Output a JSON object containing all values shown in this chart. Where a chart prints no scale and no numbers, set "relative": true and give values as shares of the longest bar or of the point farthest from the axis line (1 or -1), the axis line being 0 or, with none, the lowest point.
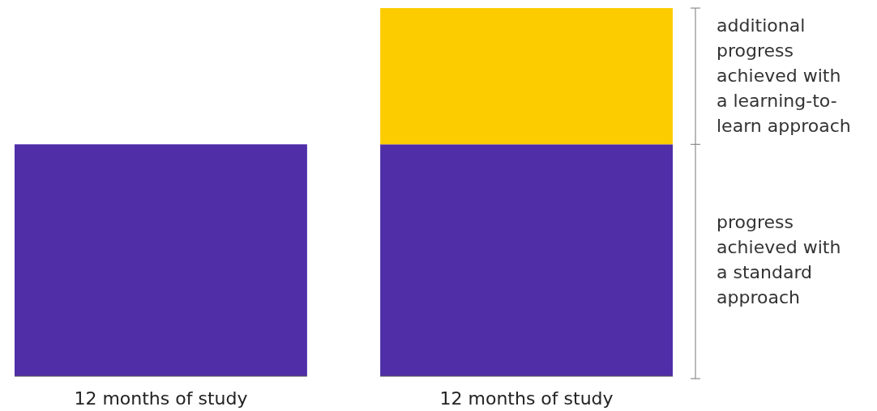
{
  "chart_data": {
    "type": "bar",
    "stacked": true,
    "relative": true,
    "legend": false,
    "categories": [
      "12 months of study",
      "12 months of study"
    ],
    "series": [
      {
        "name": "progress achieved with a standard approach",
        "color": "#4f2ea8",
        "values": [
          0.63,
          0.63
        ]
      },
      {
        "name": "additional progress achieved with a learning-to-learn approach",
        "color": "#fccc00",
        "values": [
          null,
          0.37
        ]
      }
    ]
  }
}
